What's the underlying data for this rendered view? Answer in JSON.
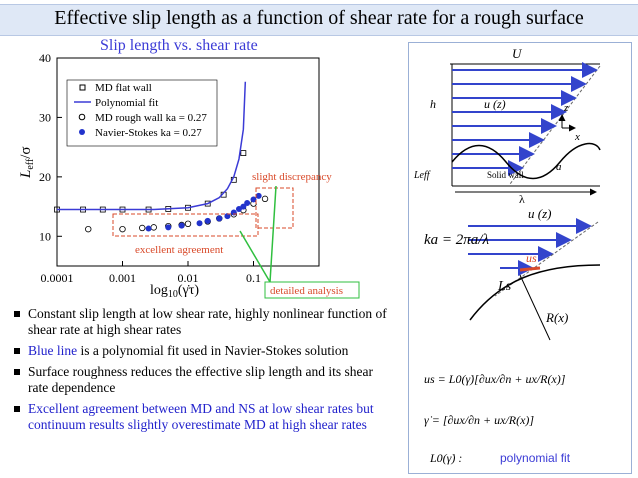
{
  "header": {
    "title": "Effective slip length as a function of shear rate for a rough surface"
  },
  "chart": {
    "title": "Slip length vs. shear rate"
  },
  "chart_data": {
    "type": "scatter",
    "xscale": "log",
    "xlim": [
      0.0001,
      1
    ],
    "ylim": [
      5,
      40
    ],
    "xlabel": "log10(γ̇τ)",
    "ylabel": "Leff/σ",
    "xticks": [
      "0.0001",
      "0.001",
      "0.01",
      "0.1"
    ],
    "yticks": [
      "10",
      "20",
      "30",
      "40"
    ],
    "legend": [
      "MD flat wall",
      "Polynomial fit",
      "MD rough wall ka = 0.27",
      "Navier-Stokes ka = 0.27"
    ],
    "legend_placement": "top-left",
    "series": [
      {
        "name": "MD flat wall",
        "marker": "open-square",
        "x": [
          0.0001,
          0.00025,
          0.0005,
          0.001,
          0.0025,
          0.005,
          0.01,
          0.02,
          0.035,
          0.05,
          0.07
        ],
        "y": [
          14.5,
          14.5,
          14.5,
          14.5,
          14.5,
          14.6,
          14.8,
          15.5,
          17,
          19.5,
          24
        ]
      },
      {
        "name": "Polynomial fit",
        "marker": "line",
        "x": [
          0.0001,
          0.0003,
          0.001,
          0.003,
          0.01,
          0.02,
          0.03,
          0.04,
          0.05,
          0.06,
          0.07,
          0.075
        ],
        "y": [
          14.5,
          14.5,
          14.5,
          14.5,
          14.8,
          15.5,
          16.5,
          18,
          20,
          23,
          28,
          36
        ]
      },
      {
        "name": "MD rough wall ka = 0.27",
        "marker": "open-circle",
        "x": [
          0.0003,
          0.001,
          0.002,
          0.003,
          0.005,
          0.008,
          0.01,
          0.02,
          0.03,
          0.05,
          0.07,
          0.1,
          0.15
        ],
        "y": [
          11.2,
          11.2,
          11.4,
          11.5,
          11.7,
          11.9,
          12.1,
          12.5,
          13,
          13.7,
          14.4,
          15.5,
          16.3
        ]
      },
      {
        "name": "Navier-Stokes ka = 0.27",
        "marker": "filled-circle",
        "x": [
          0.0025,
          0.005,
          0.008,
          0.015,
          0.02,
          0.03,
          0.04,
          0.05,
          0.06,
          0.07,
          0.08,
          0.1,
          0.12
        ],
        "y": [
          11.3,
          11.5,
          11.8,
          12.2,
          12.6,
          13,
          13.4,
          14,
          14.6,
          15,
          15.6,
          16.2,
          16.8
        ]
      }
    ],
    "annotations": [
      "slight discrepancy",
      "excellent agreement",
      "detailed analysis"
    ]
  },
  "colors": {
    "title_bg": "#dfe8f6",
    "accent_blue": "#3b3bd6",
    "annotation_red": "#d94a2a",
    "annotation_green": "#2fbf3f"
  },
  "bullets": [
    {
      "text": "Constant slip length at low shear rate, highly nonlinear function of shear rate at high shear rates"
    },
    {
      "blue": "Blue line",
      "rest": " is a polynomial fit used in Navier-Stokes solution"
    },
    {
      "text": "Surface roughness reduces the effective slip length and its shear rate dependence"
    },
    {
      "text": "Excellent agreement between MD and NS at low shear rates but continuum results slightly overestimate MD at high shear rates"
    }
  ],
  "schematic": {
    "U": "U",
    "h": "h",
    "uz": "u (z)",
    "z": "z",
    "x": "x",
    "a": "a",
    "leff": "Leff",
    "solid_wall": "Solid wall",
    "lambda": "λ",
    "uz2": "u (z)",
    "ka": "ka = 2πa/λ",
    "us": "us",
    "Ls": "Ls",
    "Rx": "R(x)",
    "eq1": "us = L0(γ̇)[∂ux/∂n + ux/R(x)]",
    "eq2": "γ̇ = [∂ux/∂n + ux/R(x)]",
    "L0_label": "L0(γ̇) :",
    "poly_fit": "polynomial fit"
  }
}
